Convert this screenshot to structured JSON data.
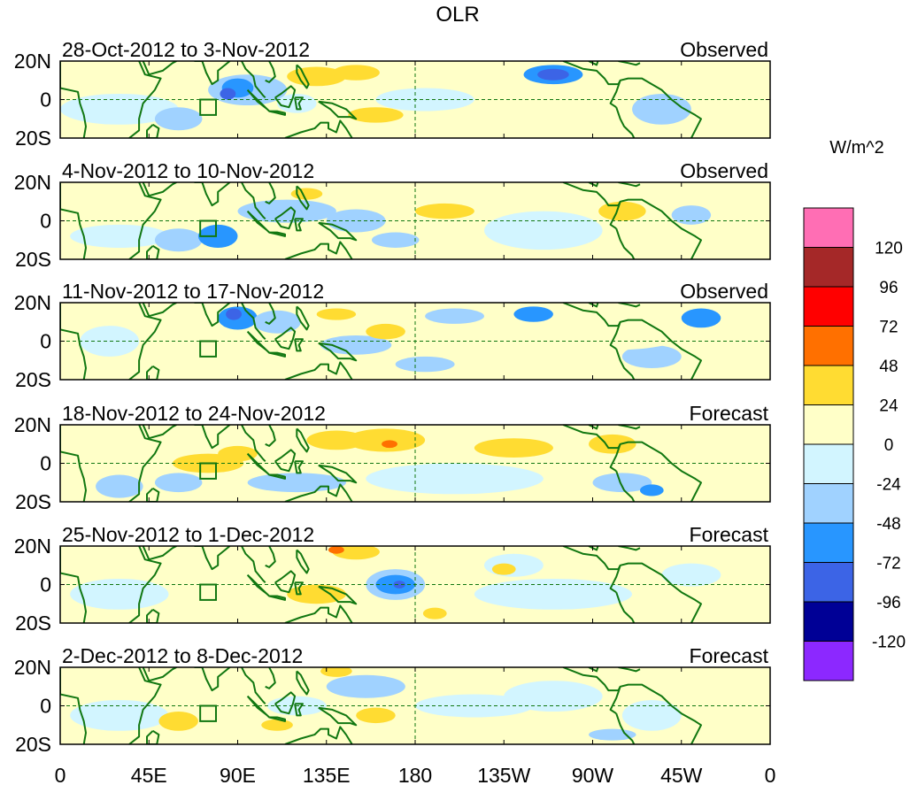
{
  "title": "OLR",
  "units": "W/m^2",
  "lat_labels": [
    "20N",
    "0",
    "20S"
  ],
  "lon_labels": [
    "0",
    "45E",
    "90E",
    "135E",
    "180",
    "135W",
    "90W",
    "45W",
    "0"
  ],
  "panels": [
    {
      "period": "28-Oct-2012 to 3-Nov-2012",
      "type": "Observed"
    },
    {
      "period": "4-Nov-2012 to 10-Nov-2012",
      "type": "Observed"
    },
    {
      "period": "11-Nov-2012 to 17-Nov-2012",
      "type": "Observed"
    },
    {
      "period": "18-Nov-2012 to 24-Nov-2012",
      "type": "Forecast"
    },
    {
      "period": "25-Nov-2012 to 1-Dec-2012",
      "type": "Forecast"
    },
    {
      "period": "2-Dec-2012 to 8-Dec-2012",
      "type": "Forecast"
    }
  ],
  "colorbar": {
    "colors": [
      "#ff6eb4",
      "#a52828",
      "#ff0000",
      "#ff7000",
      "#ffdc32",
      "#ffffc8",
      "#d2f5ff",
      "#a0d2ff",
      "#2896ff",
      "#3c64e6",
      "#000096",
      "#8c28ff"
    ],
    "labels": [
      "120",
      "96",
      "72",
      "48",
      "24",
      "0",
      "-24",
      "-48",
      "-72",
      "-96",
      "-120"
    ]
  },
  "colors": {
    "coastline": "#117711",
    "neutral": "#ffffc8",
    "equator_line": "#117711"
  }
}
